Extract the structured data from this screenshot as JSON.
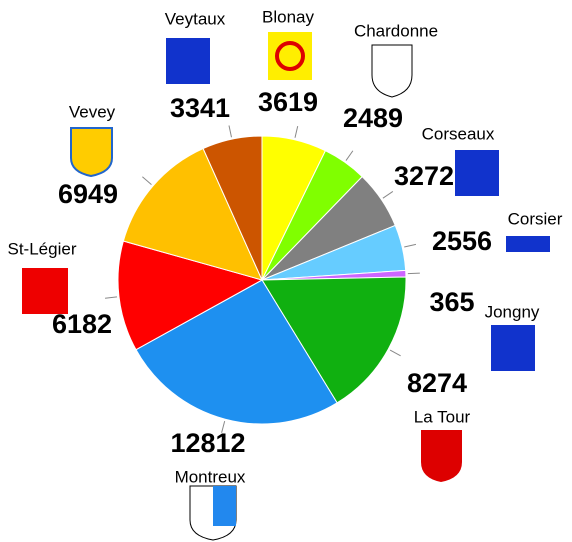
{
  "chart_data": {
    "type": "pie",
    "categories": [
      "Blonay",
      "Chardonne",
      "Corseaux",
      "Corsier",
      "Jongny",
      "La Tour",
      "Montreux",
      "St-Légier",
      "Vevey",
      "Veytaux"
    ],
    "values": [
      3619,
      2489,
      3272,
      2556,
      365,
      8274,
      12812,
      6182,
      6949,
      3341
    ],
    "colors": [
      "#ffff00",
      "#80ff00",
      "#808080",
      "#66ccff",
      "#cc66ff",
      "#10b010",
      "#1e90f0",
      "#ff0000",
      "#ffc000",
      "#cc5500"
    ]
  }
}
